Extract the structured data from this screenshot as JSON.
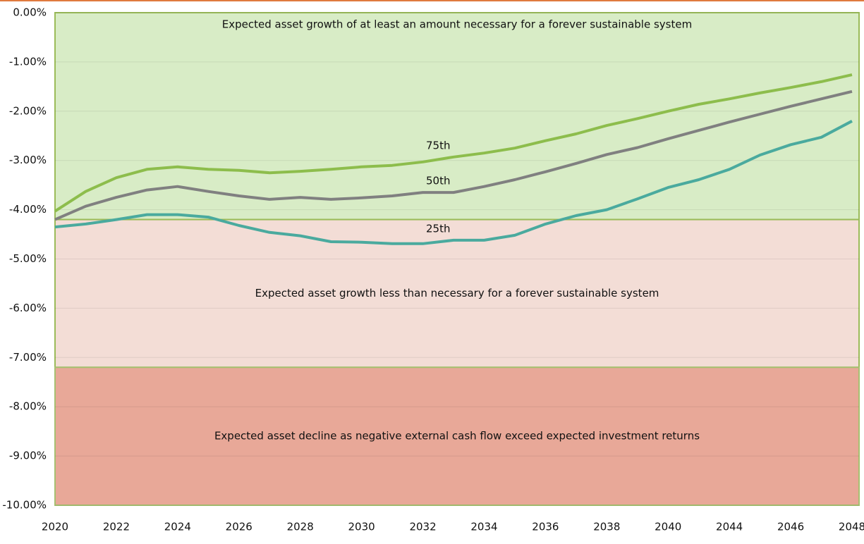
{
  "chart_data": {
    "type": "line",
    "categories": [
      "2020",
      null,
      "2022",
      null,
      "2024",
      null,
      "2026",
      null,
      "2028",
      null,
      "2030",
      null,
      "2032",
      null,
      "2034",
      null,
      "2036",
      null,
      "2038",
      null,
      "2040",
      null,
      "2044",
      null,
      "2046",
      null,
      "2048"
    ],
    "ylim": [
      -10,
      0
    ],
    "yticks": [
      {
        "value": 0,
        "label": "0.00%"
      },
      {
        "value": -1,
        "label": "-1.00%"
      },
      {
        "value": -2,
        "label": "-2.00%"
      },
      {
        "value": -3,
        "label": "-3.00%"
      },
      {
        "value": -4,
        "label": "-4.00%"
      },
      {
        "value": -5,
        "label": "-5.00%"
      },
      {
        "value": -6,
        "label": "-6.00%"
      },
      {
        "value": -7,
        "label": "-7.00%"
      },
      {
        "value": -8,
        "label": "-8.00%"
      },
      {
        "value": -9,
        "label": "-9.00%"
      },
      {
        "value": -10,
        "label": "-10.00%"
      }
    ],
    "grid": true,
    "bands": [
      {
        "from": 0,
        "to": -4.2,
        "color": "#d8ecc6",
        "border": "#9bbb59",
        "label": "Expected asset growth of at least an amount necessary for a forever sustainable system"
      },
      {
        "from": -4.2,
        "to": -7.2,
        "color": "#f3ddd6",
        "border": "#9bbb59",
        "label": "Expected asset growth less than necessary for a forever sustainable system"
      },
      {
        "from": -7.2,
        "to": -10,
        "color": "#e8a898",
        "border": "#a7c071",
        "label": "Expected asset decline as negative external cash flow exceed expected investment returns"
      }
    ],
    "series": [
      {
        "name": "75th",
        "color": "#8dbd4c",
        "values": [
          -4.03,
          -3.63,
          -3.35,
          -3.18,
          -3.13,
          -3.18,
          -3.2,
          -3.25,
          -3.22,
          -3.18,
          -3.13,
          -3.1,
          -3.03,
          -2.93,
          -2.85,
          -2.75,
          -2.6,
          -2.46,
          -2.29,
          -2.15,
          -2.0,
          -1.86,
          -1.75,
          -1.63,
          -1.52,
          -1.4,
          -1.26
        ]
      },
      {
        "name": "50th",
        "color": "#808080",
        "values": [
          -4.2,
          -3.93,
          -3.75,
          -3.6,
          -3.53,
          -3.63,
          -3.72,
          -3.79,
          -3.75,
          -3.79,
          -3.76,
          -3.72,
          -3.65,
          -3.65,
          -3.53,
          -3.39,
          -3.23,
          -3.06,
          -2.88,
          -2.74,
          -2.56,
          -2.39,
          -2.22,
          -2.06,
          -1.9,
          -1.75,
          -1.6
        ]
      },
      {
        "name": "25th",
        "color": "#4aaa9e",
        "values": [
          -4.35,
          -4.29,
          -4.2,
          -4.1,
          -4.1,
          -4.15,
          -4.32,
          -4.46,
          -4.53,
          -4.65,
          -4.66,
          -4.69,
          -4.69,
          -4.62,
          -4.62,
          -4.52,
          -4.29,
          -4.12,
          -4.0,
          -3.78,
          -3.55,
          -3.39,
          -3.18,
          -2.89,
          -2.68,
          -2.53,
          -2.2
        ]
      }
    ]
  }
}
